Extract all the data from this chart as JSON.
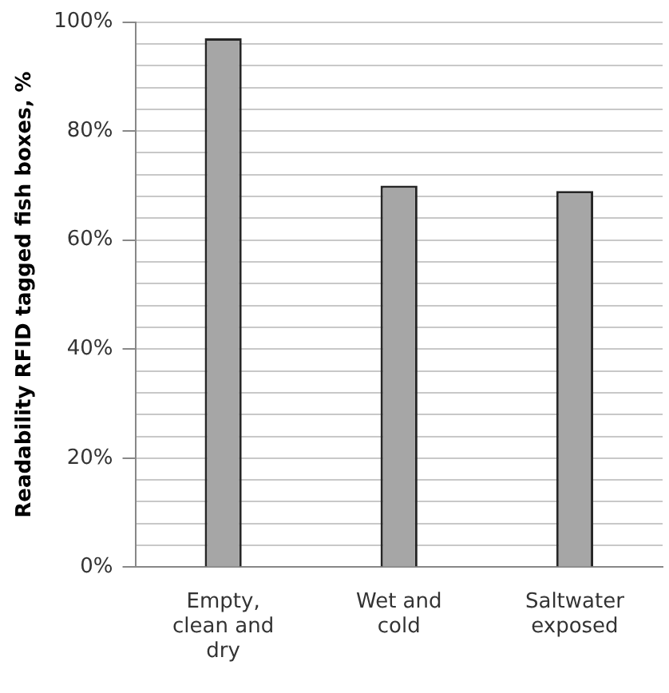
{
  "chart_data": {
    "type": "bar",
    "ylabel": "Readability RFID tagged fish boxes, %",
    "categories": [
      "Empty, clean and dry",
      "Wet and cold",
      "Saltwater exposed"
    ],
    "values": [
      97,
      70,
      69
    ],
    "color": "#a6a6a6",
    "ylim": [
      0,
      100
    ],
    "yticks": [
      {
        "value": 0,
        "label": "0%"
      },
      {
        "value": 4,
        "label": null
      },
      {
        "value": 8,
        "label": null
      },
      {
        "value": 12,
        "label": null
      },
      {
        "value": 16,
        "label": null
      },
      {
        "value": 20,
        "label": "20%"
      },
      {
        "value": 24,
        "label": null
      },
      {
        "value": 28,
        "label": null
      },
      {
        "value": 32,
        "label": null
      },
      {
        "value": 36,
        "label": null
      },
      {
        "value": 40,
        "label": "40%"
      },
      {
        "value": 44,
        "label": null
      },
      {
        "value": 48,
        "label": null
      },
      {
        "value": 52,
        "label": null
      },
      {
        "value": 56,
        "label": null
      },
      {
        "value": 60,
        "label": "60%"
      },
      {
        "value": 64,
        "label": null
      },
      {
        "value": 68,
        "label": null
      },
      {
        "value": 72,
        "label": null
      },
      {
        "value": 76,
        "label": null
      },
      {
        "value": 80,
        "label": "80%"
      },
      {
        "value": 84,
        "label": null
      },
      {
        "value": 88,
        "label": null
      },
      {
        "value": 92,
        "label": null
      },
      {
        "value": 96,
        "label": null
      },
      {
        "value": 100,
        "label": "100%"
      }
    ],
    "grid": "y",
    "legend": false
  }
}
